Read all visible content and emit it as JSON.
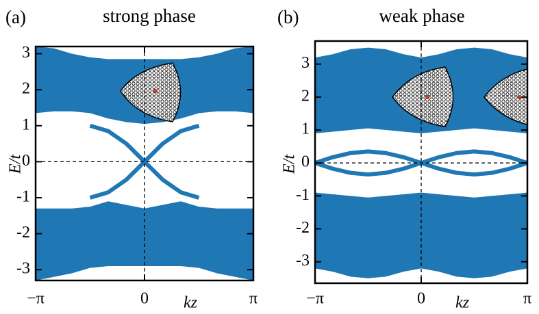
{
  "chart_data": [
    {
      "type": "band",
      "panel": "(a)",
      "title": "strong phase",
      "xlabel": "kz",
      "ylabel": "E/t",
      "color": "#1f77b4",
      "xlim": [
        -3.1416,
        3.1416
      ],
      "xticks": [
        {
          "value": -3.1416,
          "label": "−π"
        },
        0,
        {
          "value": 3.1416,
          "label": "π"
        }
      ],
      "ylim": [
        -3.3,
        3.2
      ],
      "yticks": [
        -3,
        -2,
        -1,
        0,
        1,
        2,
        3
      ],
      "x": [
        -3.1416,
        -2.618,
        -2.0944,
        -1.5708,
        -1.0472,
        -0.5236,
        0,
        0.5236,
        1.0472,
        1.5708,
        2.0944,
        2.618,
        3.1416
      ],
      "bands": [
        {
          "upper": [
            3.2,
            3.15,
            3.0,
            2.9,
            2.85,
            2.85,
            2.85,
            2.85,
            2.85,
            2.9,
            3.0,
            3.15,
            3.2
          ],
          "lower": [
            1.35,
            1.4,
            1.4,
            1.35,
            1.2,
            1.1,
            1.05,
            1.1,
            1.2,
            1.35,
            1.4,
            1.4,
            1.35
          ]
        },
        {
          "upper": [
            -1.3,
            -1.3,
            -1.3,
            -1.25,
            -1.1,
            -1.2,
            -1.3,
            -1.2,
            -1.1,
            -1.25,
            -1.3,
            -1.3,
            -1.3
          ],
          "lower": [
            -3.3,
            -3.2,
            -3.1,
            -2.95,
            -2.9,
            -2.9,
            -2.9,
            -2.9,
            -2.9,
            -2.95,
            -3.1,
            -3.2,
            -3.3
          ]
        }
      ],
      "lines": [
        {
          "values": [
            null,
            null,
            null,
            1.0,
            0.85,
            0.5,
            0,
            -0.5,
            -0.85,
            -1.0,
            null,
            null,
            null
          ]
        },
        {
          "values": [
            null,
            null,
            null,
            -1.0,
            -0.85,
            -0.5,
            0,
            0.5,
            0.85,
            1.0,
            null,
            null,
            null
          ]
        }
      ]
    },
    {
      "type": "band",
      "panel": "(b)",
      "title": "weak phase",
      "xlabel": "kz",
      "ylabel": "E/t",
      "color": "#1f77b4",
      "xlim": [
        -3.1416,
        3.1416
      ],
      "xticks": [
        {
          "value": -3.1416,
          "label": "−π"
        },
        0,
        {
          "value": 3.1416,
          "label": "π"
        }
      ],
      "ylim": [
        -3.65,
        3.7
      ],
      "yticks": [
        -3,
        -2,
        -1,
        0,
        1,
        2,
        3
      ],
      "x": [
        -3.1416,
        -2.618,
        -2.0944,
        -1.5708,
        -1.0472,
        -0.5236,
        0,
        0.5236,
        1.0472,
        1.5708,
        2.0944,
        2.618,
        3.1416
      ],
      "bands": [
        {
          "upper": [
            3.2,
            3.3,
            3.45,
            3.5,
            3.45,
            3.3,
            3.2,
            3.3,
            3.45,
            3.5,
            3.45,
            3.3,
            3.2
          ],
          "lower": [
            0.9,
            0.95,
            1.0,
            1.05,
            1.0,
            0.95,
            0.9,
            0.95,
            1.0,
            1.05,
            1.0,
            0.95,
            0.9
          ]
        },
        {
          "upper": [
            -0.9,
            -0.95,
            -1.0,
            -1.05,
            -1.0,
            -0.95,
            -0.9,
            -0.95,
            -1.0,
            -1.05,
            -1.0,
            -0.95,
            -0.9
          ],
          "lower": [
            -3.2,
            -3.3,
            -3.45,
            -3.5,
            -3.45,
            -3.3,
            -3.2,
            -3.3,
            -3.45,
            -3.5,
            -3.45,
            -3.3,
            -3.2
          ]
        }
      ],
      "lines": [
        {
          "values": [
            0,
            0.175,
            0.3,
            0.35,
            0.3,
            0.175,
            0,
            0.175,
            0.3,
            0.35,
            0.3,
            0.175,
            0
          ]
        },
        {
          "values": [
            0,
            -0.175,
            -0.3,
            -0.35,
            -0.3,
            -0.175,
            0,
            -0.175,
            -0.3,
            -0.35,
            -0.3,
            -0.175,
            0
          ]
        }
      ]
    }
  ]
}
